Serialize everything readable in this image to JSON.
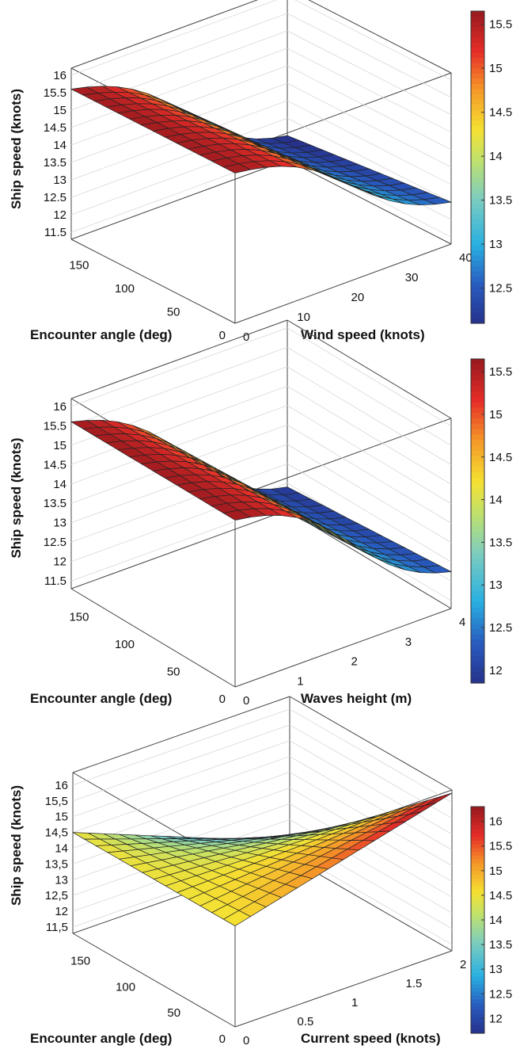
{
  "chart_data": [
    {
      "type": "surface",
      "zlabel": "Ship speed (knots)",
      "xlabel": "Wind speed (knots)",
      "ylabel": "Encounter angle (deg)",
      "x_ticks": [
        "0",
        "10",
        "20",
        "30",
        "40"
      ],
      "y_ticks": [
        "0",
        "50",
        "100",
        "150"
      ],
      "z_ticks": [
        "11.5",
        "12",
        "12.5",
        "13",
        "13.5",
        "14",
        "14.5",
        "15",
        "15.5",
        "16"
      ],
      "colorbar_ticks": [
        "12.5",
        "13",
        "13.5",
        "14",
        "14.5",
        "15",
        "15.5"
      ],
      "xlim": [
        0,
        40
      ],
      "ylim": [
        0,
        180
      ],
      "zlim": [
        11.3,
        16.2
      ],
      "clim": [
        12.1,
        15.65
      ],
      "colormap": "jet",
      "grid": true,
      "corners": {
        "x0_y180": 15.6,
        "x0_y0": 15.6,
        "x40_y180": 11.5,
        "x40_y0": 12.1
      }
    },
    {
      "type": "surface",
      "zlabel": "Ship speed (knots)",
      "xlabel": "Waves height (m)",
      "ylabel": "Encounter angle (deg)",
      "x_ticks": [
        "0",
        "1",
        "2",
        "3",
        "4"
      ],
      "y_ticks": [
        "0",
        "50",
        "100",
        "150"
      ],
      "z_ticks": [
        "11.5",
        "12",
        "12.5",
        "13",
        "13.5",
        "14",
        "14.5",
        "15",
        "15.5",
        "16"
      ],
      "colorbar_ticks": [
        "12",
        "12.5",
        "13",
        "13.5",
        "14",
        "14.5",
        "15",
        "15.5"
      ],
      "xlim": [
        0,
        4
      ],
      "ylim": [
        0,
        180
      ],
      "zlim": [
        11.3,
        16.2
      ],
      "clim": [
        11.85,
        15.65
      ],
      "colormap": "jet",
      "grid": true,
      "corners": {
        "x0_y180": 15.6,
        "x0_y0": 15.6,
        "x4_y180": 11.5,
        "x4_y0": 11.9
      }
    },
    {
      "type": "surface",
      "zlabel": "Ship speed (knots)",
      "xlabel": "Current speed (knots)",
      "ylabel": "Encounter angle (deg)",
      "x_ticks": [
        "0",
        "0.5",
        "1",
        "1.5",
        "2"
      ],
      "y_ticks": [
        "0",
        "50",
        "100",
        "150"
      ],
      "z_ticks": [
        "11,5",
        "12",
        "12,5",
        "13",
        "13,5",
        "14",
        "14,5",
        "15",
        "15,5",
        "16"
      ],
      "colorbar_ticks": [
        "12",
        "12.5",
        "13",
        "13.5",
        "14",
        "14.5",
        "15",
        "15.5",
        "16"
      ],
      "xlim": [
        0,
        2
      ],
      "ylim": [
        0,
        180
      ],
      "zlim": [
        11.3,
        16.4
      ],
      "clim": [
        11.7,
        16.3
      ],
      "colormap": "jet",
      "grid": true,
      "corners": {
        "x0_y180": 14.5,
        "x0_y0": 14.5,
        "x2_y180": 11.8,
        "x2_y0": 16.3
      }
    }
  ]
}
